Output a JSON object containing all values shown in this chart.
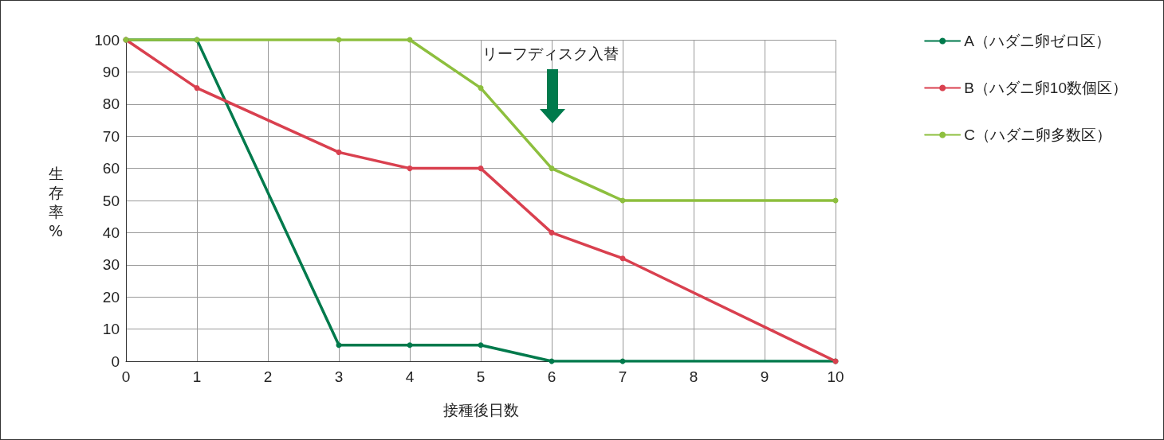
{
  "chart_data": {
    "type": "line",
    "xlabel": "接種後日数",
    "ylabel": "生存率%",
    "xlim": [
      0,
      10
    ],
    "xticks": [
      0,
      1,
      2,
      3,
      4,
      5,
      6,
      7,
      8,
      9,
      10
    ],
    "ylim": [
      0,
      100
    ],
    "yticks": [
      0,
      10,
      20,
      30,
      40,
      50,
      60,
      70,
      80,
      90,
      100
    ],
    "grid": true,
    "legend": "right",
    "marker": "circle",
    "line_style": "solid",
    "annotations": [
      "リーフディスク入替"
    ],
    "series": [
      {
        "name": "A（ハダニ卵ゼロ区）",
        "color": "#007a4c",
        "x": [
          0,
          1,
          3,
          4,
          5,
          6,
          7,
          10
        ],
        "values": [
          100,
          100,
          5,
          5,
          5,
          0,
          0,
          0
        ]
      },
      {
        "name": "B（ハダニ卵10数個区）",
        "color": "#d9404f",
        "x": [
          0,
          1,
          3,
          4,
          5,
          6,
          7,
          10
        ],
        "values": [
          100,
          85,
          65,
          60,
          60,
          40,
          32,
          0
        ]
      },
      {
        "name": "C（ハダニ卵多数区）",
        "color": "#8dbf3e",
        "x": [
          0,
          1,
          3,
          4,
          5,
          6,
          7,
          10
        ],
        "values": [
          100,
          100,
          100,
          100,
          85,
          60,
          50,
          50
        ]
      }
    ]
  }
}
